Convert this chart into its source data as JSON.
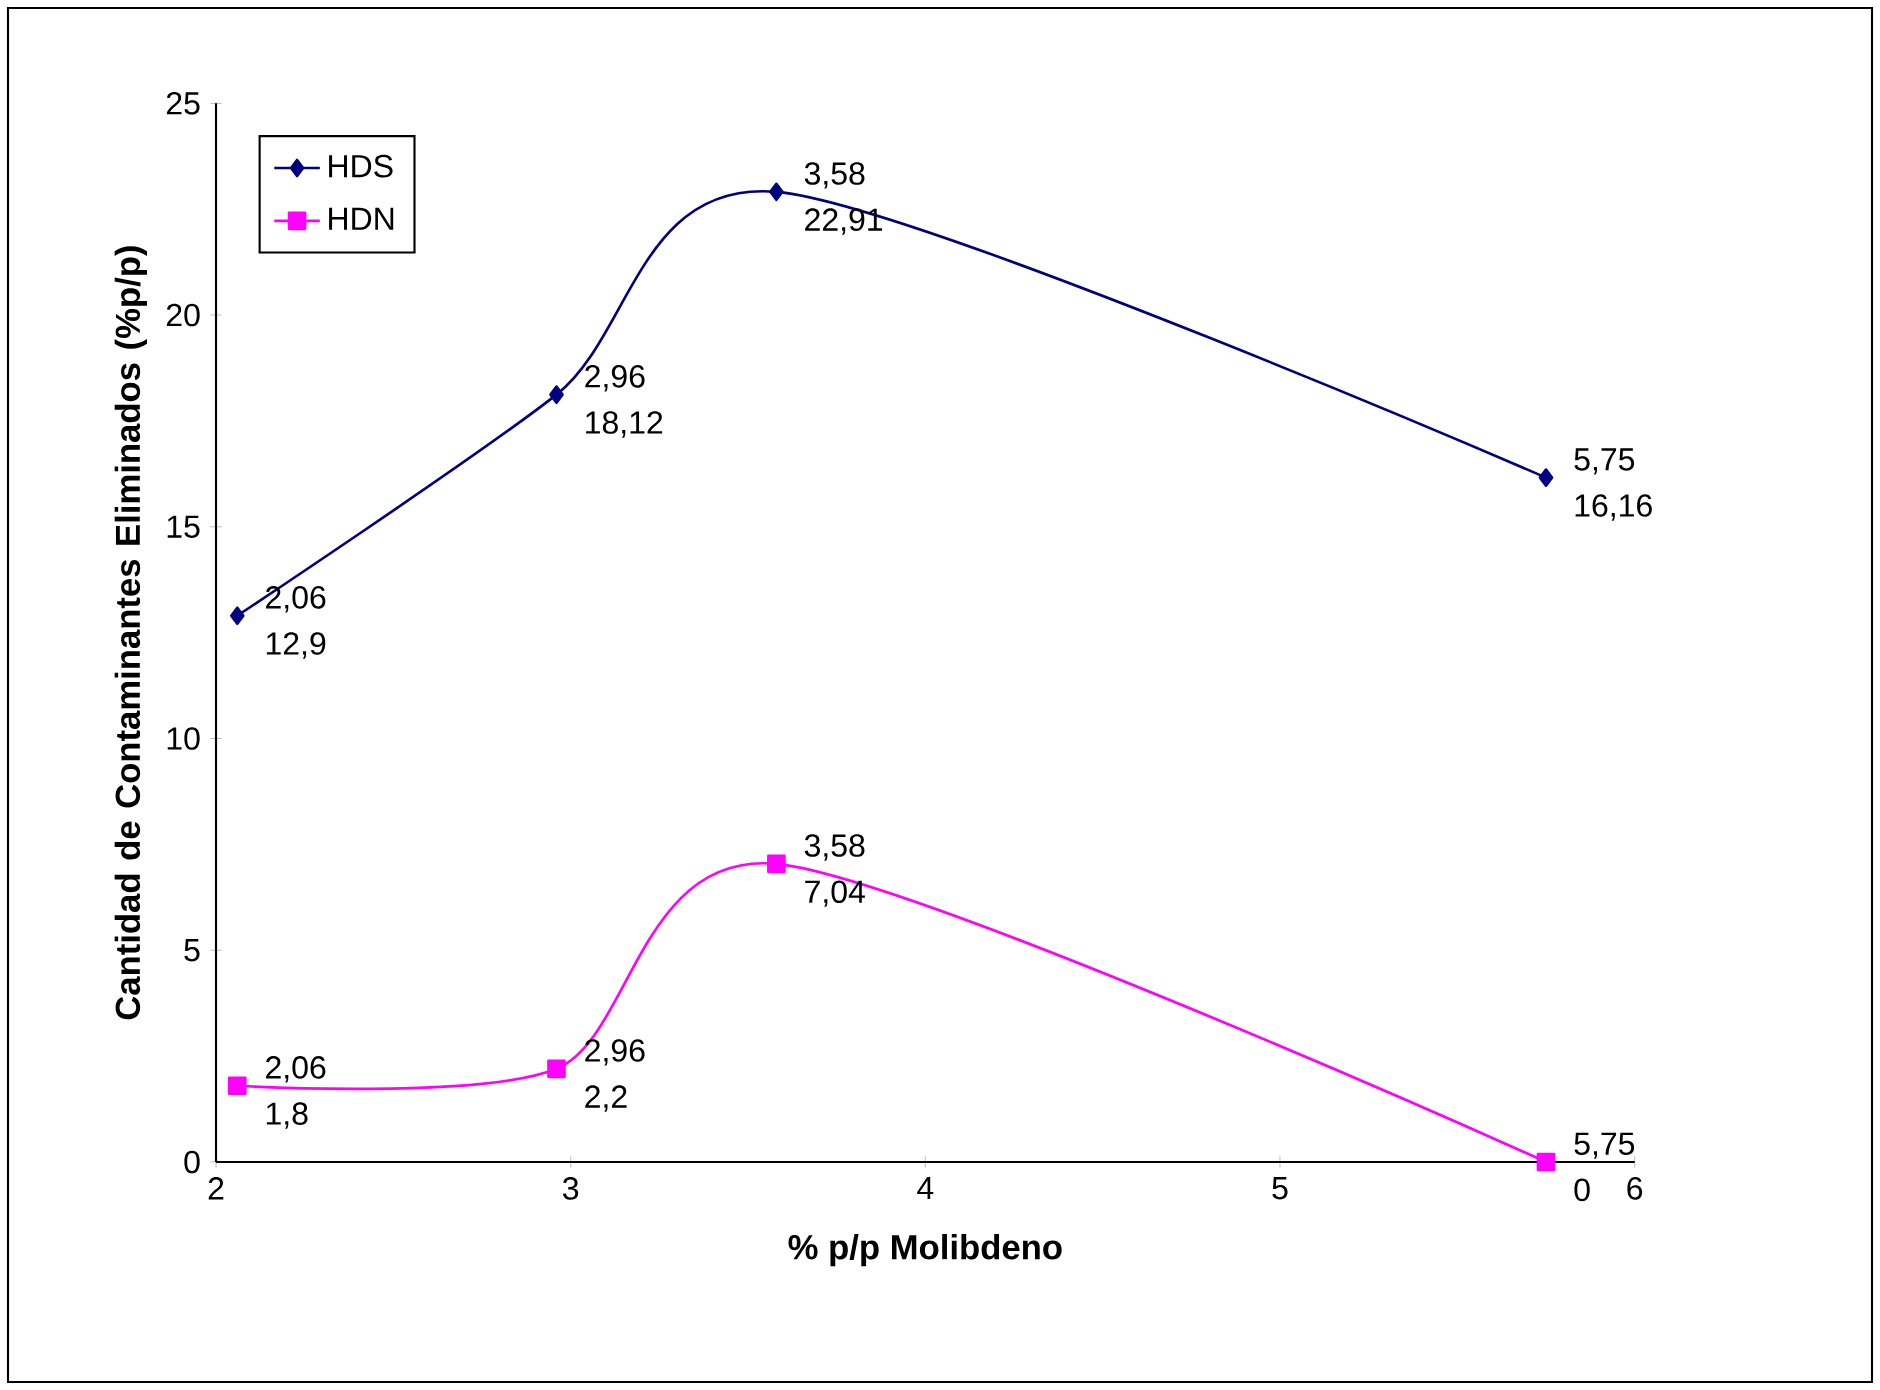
{
  "chart_data": {
    "type": "line",
    "xlabel": "% p/p Molibdeno",
    "ylabel": "Cantidad de Contaminantes Eliminados (%p/p)",
    "xlim": [
      2,
      6
    ],
    "xticks": [
      2,
      3,
      4,
      5,
      6
    ],
    "ylim": [
      0,
      25
    ],
    "yticks": [
      0,
      5,
      10,
      15,
      20,
      25
    ],
    "grid": false,
    "legend": "top left",
    "line_style": "solid",
    "series": [
      {
        "name": "HDS",
        "color": "#000080",
        "marker": "diamond",
        "x": [
          2.06,
          2.96,
          3.58,
          5.75
        ],
        "values": [
          12.9,
          18.12,
          22.91,
          16.16
        ],
        "value_labels": [
          "12,9",
          "18,12",
          "22,91",
          "16,16"
        ]
      },
      {
        "name": "HDN",
        "color": "#ff00ff",
        "marker": "square",
        "x": [
          2.06,
          2.96,
          3.58,
          5.75
        ],
        "values": [
          1.8,
          2.2,
          7.04,
          0
        ],
        "value_labels": [
          "1,8",
          "2,2",
          "7,04",
          "0"
        ]
      }
    ],
    "annotations": [
      {
        "text": "2,06",
        "x": 2.06,
        "y": 12.9
      },
      {
        "text": "2,96",
        "x": 2.96,
        "y": 18.12
      },
      {
        "text": "3,58",
        "x": 3.58,
        "y": 22.91
      },
      {
        "text": "5,75",
        "x": 5.75,
        "y": 16.16
      },
      {
        "text": "2,06",
        "x": 2.06,
        "y": 1.8
      },
      {
        "text": "2,96",
        "x": 2.96,
        "y": 2.2
      },
      {
        "text": "3,58",
        "x": 3.58,
        "y": 7.04
      },
      {
        "text": "5,75",
        "x": 5.75,
        "y": 0
      }
    ]
  }
}
